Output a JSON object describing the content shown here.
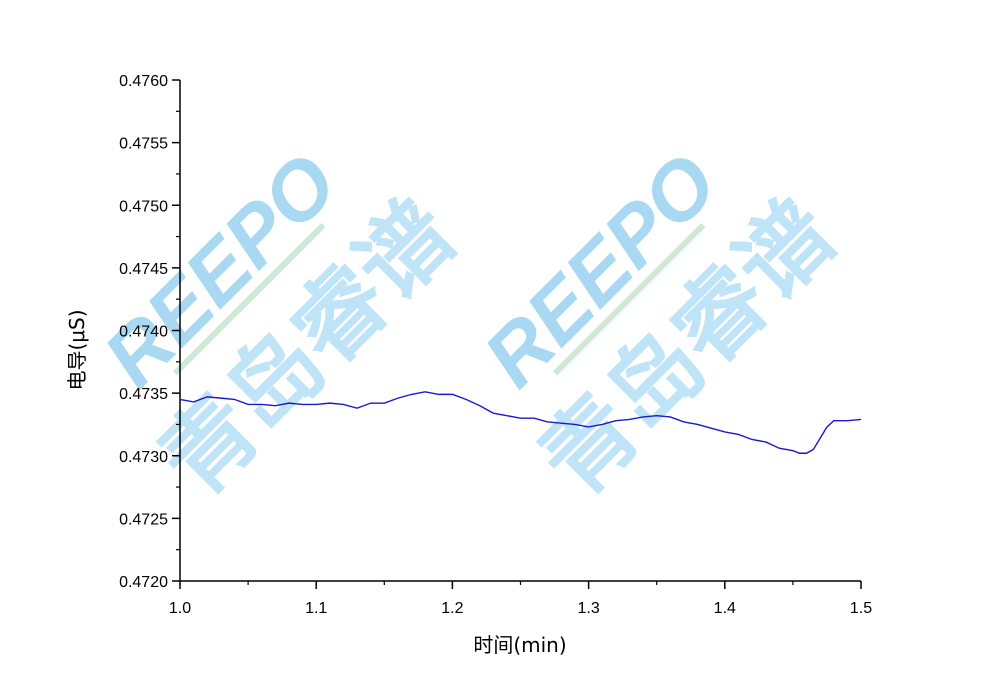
{
  "watermark": {
    "latin": "REEPO",
    "cjk": "青岛睿谱",
    "color_latin": "#a8d8f2",
    "color_cjk": "#bfe3f7",
    "color_underline": "#cfe9d6"
  },
  "chart_data": {
    "type": "line",
    "title": "",
    "xlabel": "时间(min)",
    "ylabel": "电导(μS)",
    "xlim": [
      1.0,
      1.5
    ],
    "ylim": [
      0.472,
      0.476
    ],
    "x_ticks": [
      "1.0",
      "1.1",
      "1.2",
      "1.3",
      "1.4",
      "1.5"
    ],
    "y_ticks": [
      "0.4720",
      "0.4725",
      "0.4730",
      "0.4735",
      "0.4740",
      "0.4745",
      "0.4750",
      "0.4755",
      "0.4760"
    ],
    "grid": false,
    "legend": false,
    "line_color": "#1a1acc",
    "series": [
      {
        "x": [
          1.0,
          1.01,
          1.02,
          1.03,
          1.04,
          1.05,
          1.06,
          1.07,
          1.08,
          1.09,
          1.1,
          1.11,
          1.12,
          1.13,
          1.14,
          1.15,
          1.16,
          1.17,
          1.18,
          1.19,
          1.2,
          1.21,
          1.22,
          1.23,
          1.24,
          1.25,
          1.26,
          1.27,
          1.28,
          1.29,
          1.3,
          1.31,
          1.32,
          1.33,
          1.34,
          1.35,
          1.36,
          1.37,
          1.38,
          1.39,
          1.4,
          1.41,
          1.42,
          1.43,
          1.44,
          1.45,
          1.455,
          1.46,
          1.465,
          1.47,
          1.475,
          1.48,
          1.49,
          1.5
        ],
        "y": [
          0.47345,
          0.47343,
          0.47347,
          0.47346,
          0.47345,
          0.47341,
          0.47341,
          0.4734,
          0.47342,
          0.47341,
          0.47341,
          0.47342,
          0.47341,
          0.47338,
          0.47342,
          0.47342,
          0.47346,
          0.47349,
          0.47351,
          0.47349,
          0.47349,
          0.47345,
          0.4734,
          0.47334,
          0.47332,
          0.4733,
          0.4733,
          0.47327,
          0.47326,
          0.47325,
          0.47323,
          0.47325,
          0.47328,
          0.47329,
          0.47331,
          0.47332,
          0.47331,
          0.47327,
          0.47325,
          0.47322,
          0.47319,
          0.47317,
          0.47313,
          0.47311,
          0.47306,
          0.47304,
          0.47302,
          0.47302,
          0.47305,
          0.47314,
          0.47323,
          0.47328,
          0.47328,
          0.47329
        ]
      }
    ]
  }
}
